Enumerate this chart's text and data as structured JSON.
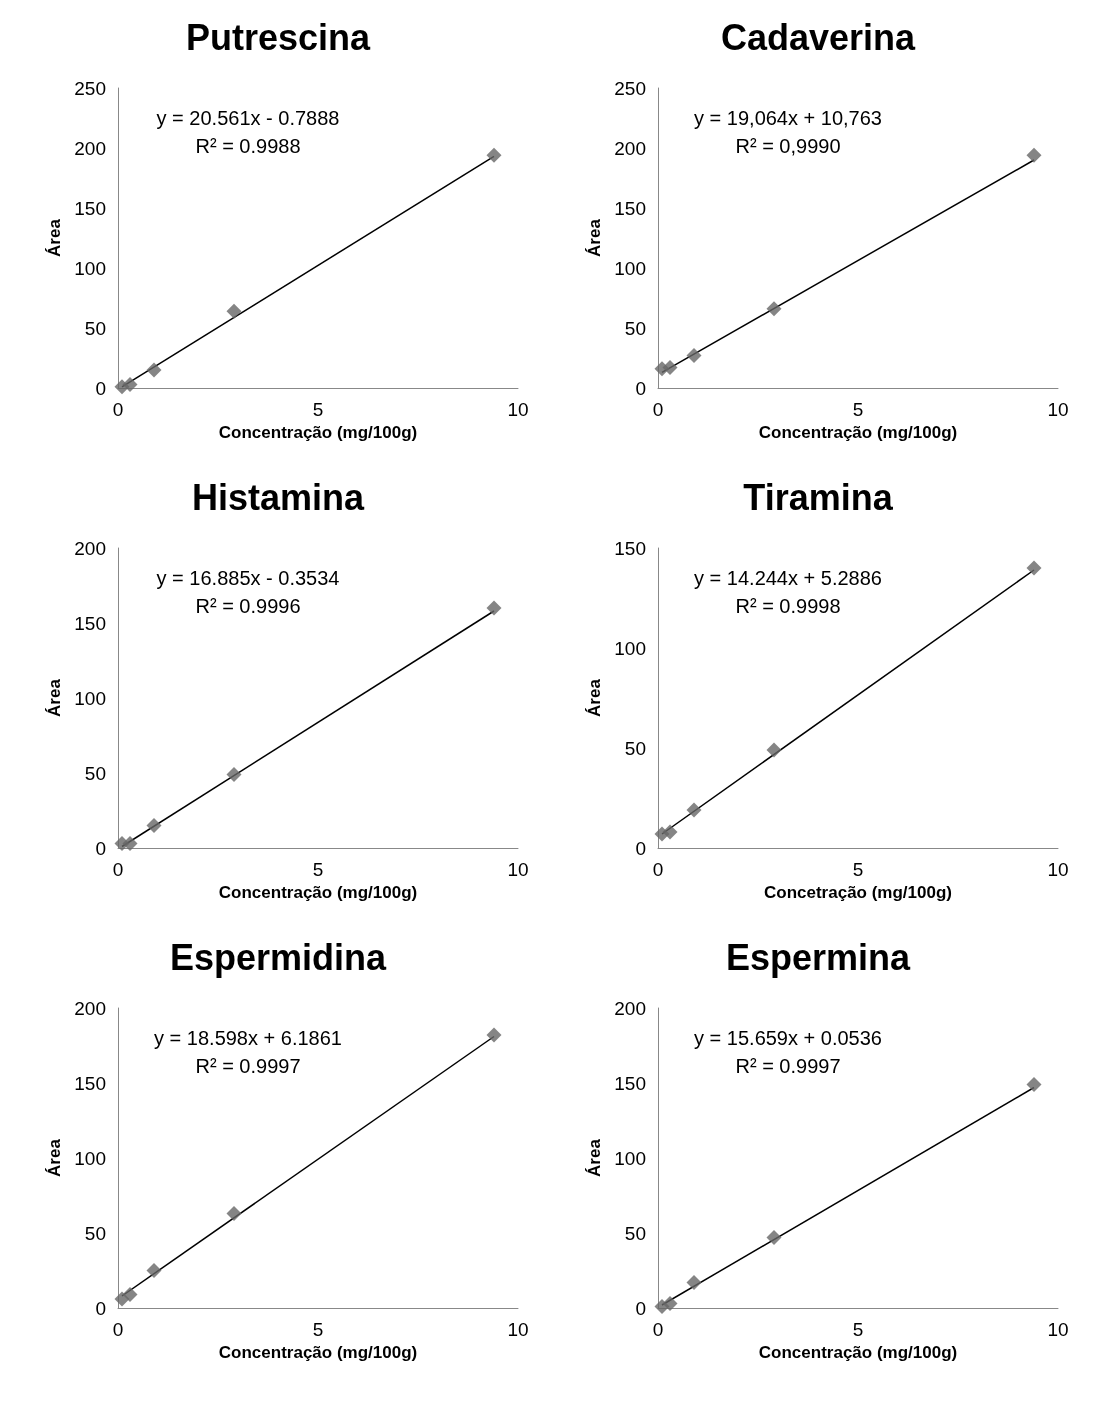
{
  "chart_data": [
    {
      "type": "scatter",
      "title": "Putrescina",
      "xlabel": "Concentração (mg/100g)",
      "ylabel": "Área",
      "xlim": [
        0,
        10
      ],
      "xticks": [
        0,
        5,
        10
      ],
      "ylim": [
        0,
        250
      ],
      "yticks": [
        0,
        50,
        100,
        150,
        200,
        250
      ],
      "grid": false,
      "marker": "diamond",
      "annotations": [
        "y = 20.561x - 0.7888",
        "R² = 0.9988"
      ],
      "series": [
        {
          "color": "#666666",
          "x": [
            0.1,
            0.3,
            0.9,
            2.9,
            9.4
          ],
          "values": [
            1,
            3,
            15,
            64,
            194
          ]
        },
        {
          "type": "line",
          "color": "#000000",
          "marker": "none",
          "line_style": "solid",
          "x": [
            0.1,
            9.4
          ],
          "values": [
            1,
            193
          ]
        }
      ]
    },
    {
      "type": "scatter",
      "title": "Cadaverina",
      "xlabel": "Concentração (mg/100g)",
      "ylabel": "Área",
      "xlim": [
        0,
        10
      ],
      "xticks": [
        0,
        5,
        10
      ],
      "ylim": [
        0,
        250
      ],
      "yticks": [
        0,
        50,
        100,
        150,
        200,
        250
      ],
      "grid": false,
      "marker": "diamond",
      "annotations": [
        "y = 19,064x + 10,763",
        "R² = 0,9990"
      ],
      "series": [
        {
          "color": "#666666",
          "x": [
            0.1,
            0.3,
            0.9,
            2.9,
            9.4
          ],
          "values": [
            16,
            17,
            27,
            66,
            194
          ]
        },
        {
          "type": "line",
          "color": "#000000",
          "marker": "none",
          "line_style": "solid",
          "x": [
            0.1,
            9.4
          ],
          "values": [
            13,
            190
          ]
        }
      ]
    },
    {
      "type": "scatter",
      "title": "Histamina",
      "xlabel": "Concentração (mg/100g)",
      "ylabel": "Área",
      "xlim": [
        0,
        10
      ],
      "xticks": [
        0,
        5,
        10
      ],
      "ylim": [
        0,
        200
      ],
      "yticks": [
        0,
        50,
        100,
        150,
        200
      ],
      "grid": false,
      "marker": "diamond",
      "annotations": [
        "y = 16.885x - 0.3534",
        "R² = 0.9996"
      ],
      "series": [
        {
          "color": "#666666",
          "x": [
            0.1,
            0.3,
            0.9,
            2.9,
            9.4
          ],
          "values": [
            3,
            3,
            15,
            49,
            160
          ]
        },
        {
          "type": "line",
          "color": "#000000",
          "marker": "none",
          "line_style": "solid",
          "x": [
            0.1,
            9.4
          ],
          "values": [
            1,
            158
          ]
        }
      ]
    },
    {
      "type": "scatter",
      "title": "Tiramina",
      "xlabel": "Concetração (mg/100g)",
      "ylabel": "Área",
      "xlim": [
        0,
        10
      ],
      "xticks": [
        0,
        5,
        10
      ],
      "ylim": [
        0,
        150
      ],
      "yticks": [
        0,
        50,
        100,
        150
      ],
      "grid": false,
      "marker": "diamond",
      "annotations": [
        "y = 14.244x + 5.2886",
        "R² = 0.9998"
      ],
      "series": [
        {
          "color": "#666666",
          "x": [
            0.1,
            0.3,
            0.9,
            2.9,
            9.4
          ],
          "values": [
            7,
            8,
            19,
            49,
            140
          ]
        },
        {
          "type": "line",
          "color": "#000000",
          "marker": "none",
          "line_style": "solid",
          "x": [
            0.1,
            9.4
          ],
          "values": [
            7,
            139
          ]
        }
      ]
    },
    {
      "type": "scatter",
      "title": "Espermidina",
      "xlabel": "Concentração (mg/100g)",
      "ylabel": "Área",
      "xlim": [
        0,
        10
      ],
      "xticks": [
        0,
        5,
        10
      ],
      "ylim": [
        0,
        200
      ],
      "yticks": [
        0,
        50,
        100,
        150,
        200
      ],
      "grid": false,
      "marker": "diamond",
      "annotations": [
        "y = 18.598x + 6.1861",
        "R² = 0.9997"
      ],
      "series": [
        {
          "color": "#666666",
          "x": [
            0.1,
            0.3,
            0.9,
            2.9,
            9.4
          ],
          "values": [
            6,
            9,
            25,
            63,
            182
          ]
        },
        {
          "type": "line",
          "color": "#000000",
          "marker": "none",
          "line_style": "solid",
          "x": [
            0.1,
            9.4
          ],
          "values": [
            8,
            181
          ]
        }
      ]
    },
    {
      "type": "scatter",
      "title": "Espermina",
      "xlabel": "Concentração (mg/100g)",
      "ylabel": "Área",
      "xlim": [
        0,
        10
      ],
      "xticks": [
        0,
        5,
        10
      ],
      "ylim": [
        0,
        200
      ],
      "yticks": [
        0,
        50,
        100,
        150,
        200
      ],
      "grid": false,
      "marker": "diamond",
      "annotations": [
        "y = 15.659x + 0.0536",
        "R² = 0.9997"
      ],
      "series": [
        {
          "color": "#666666",
          "x": [
            0.1,
            0.3,
            0.9,
            2.9,
            9.4
          ],
          "values": [
            1,
            3,
            17,
            47,
            149
          ]
        },
        {
          "type": "line",
          "color": "#000000",
          "marker": "none",
          "line_style": "solid",
          "x": [
            0.1,
            9.4
          ],
          "values": [
            2,
            147
          ]
        }
      ]
    }
  ]
}
